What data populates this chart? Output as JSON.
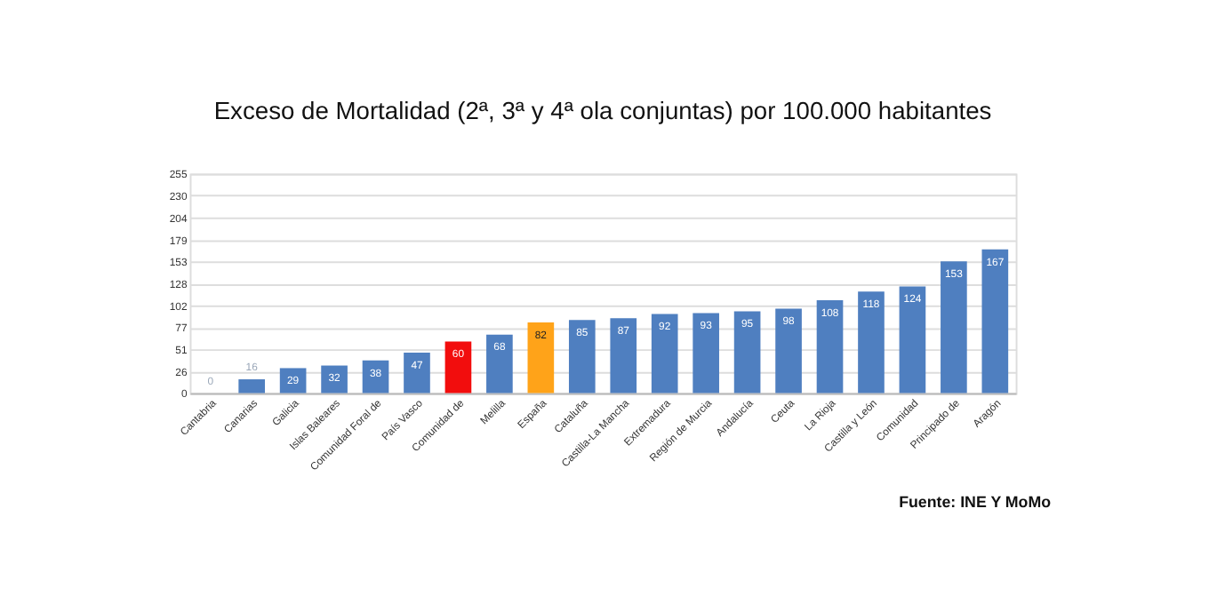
{
  "chart_data": {
    "type": "bar",
    "title": "Exceso de Mortalidad  (2ª, 3ª y 4ª ola conjuntas) por 100.000 habitantes",
    "categories": [
      "Cantabria",
      "Canarias",
      "Galicia",
      "Islas Baleares",
      "Comunidad Foral de",
      "País Vasco",
      "Comunidad de",
      "Melilla",
      "España",
      "Cataluña",
      "Castilla-La Mancha",
      "Extremadura",
      "Región de Murcia",
      "Andalucía",
      "Ceuta",
      "La Rioja",
      "Castilla y León",
      "Comunidad",
      "Principado de",
      "Aragón"
    ],
    "values": [
      0,
      16,
      29,
      32,
      38,
      47,
      60,
      68,
      82,
      85,
      87,
      92,
      93,
      95,
      98,
      108,
      118,
      124,
      153,
      167
    ],
    "colors": [
      "#4f7fc0",
      "#4f7fc0",
      "#4f7fc0",
      "#4f7fc0",
      "#4f7fc0",
      "#4f7fc0",
      "#f20d0d",
      "#4f7fc0",
      "#ffa319",
      "#4f7fc0",
      "#4f7fc0",
      "#4f7fc0",
      "#4f7fc0",
      "#4f7fc0",
      "#4f7fc0",
      "#4f7fc0",
      "#4f7fc0",
      "#4f7fc0",
      "#4f7fc0",
      "#4f7fc0"
    ],
    "ylim": [
      0,
      255
    ],
    "yticks": [
      0,
      {
        "value": 25.5,
        "label": "26"
      },
      51,
      {
        "value": 76.5,
        "label": "77"
      },
      102,
      {
        "value": 127.5,
        "label": "128"
      },
      153,
      {
        "value": 178.5,
        "label": "179"
      },
      204,
      {
        "value": 229.5,
        "label": "230"
      },
      255
    ],
    "grid": "y",
    "data_labels": true,
    "annotations": [
      "Fuente: INE Y MoMo"
    ]
  }
}
